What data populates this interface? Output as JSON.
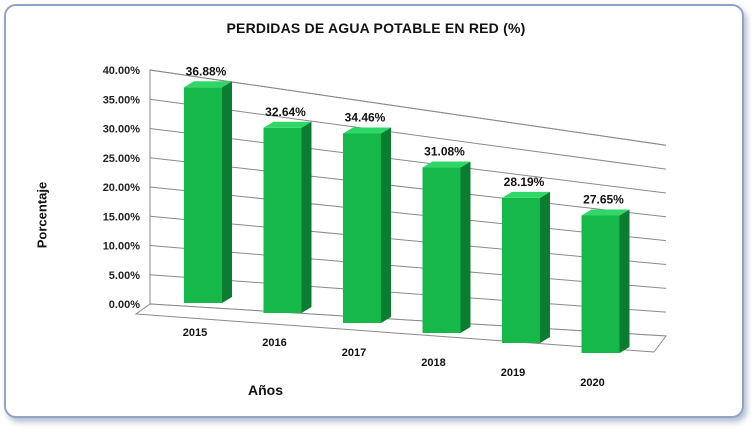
{
  "chart_data": {
    "type": "bar",
    "title": "PERDIDAS DE AGUA POTABLE EN RED (%)",
    "xlabel": "Años",
    "ylabel": "Porcentaje",
    "categories": [
      "2015",
      "2016",
      "2017",
      "2018",
      "2019",
      "2020"
    ],
    "values": [
      36.88,
      32.64,
      34.46,
      31.08,
      28.19,
      27.65
    ],
    "data_labels": [
      "36.88%",
      "32.64%",
      "34.46%",
      "31.08%",
      "28.19%",
      "27.65%"
    ],
    "ylim": [
      0,
      40
    ],
    "yticks": [
      "0.00%",
      "5.00%",
      "10.00%",
      "15.00%",
      "20.00%",
      "25.00%",
      "30.00%",
      "35.00%",
      "40.00%"
    ],
    "grid": true,
    "colors": {
      "bar_front": "#16b84a",
      "bar_side": "#0b7d30",
      "bar_top": "#2fd866",
      "grid": "#8a8a8a",
      "frame": "#8fa4c8"
    }
  }
}
